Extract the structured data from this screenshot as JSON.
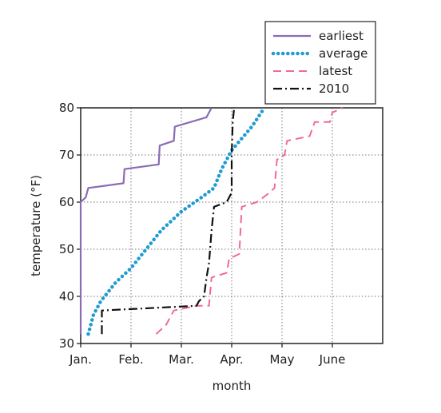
{
  "chart_data": {
    "type": "line",
    "title": "",
    "xlabel": "month",
    "ylabel": "temperature (°F)",
    "x_unit": "months after Jan. 1",
    "xlim": [
      0,
      6
    ],
    "ylim": [
      30,
      80
    ],
    "x_ticks": [
      {
        "value": 0,
        "label": "Jan."
      },
      {
        "value": 1,
        "label": "Feb."
      },
      {
        "value": 2,
        "label": "Mar."
      },
      {
        "value": 3,
        "label": "Apr."
      },
      {
        "value": 4,
        "label": "May"
      },
      {
        "value": 5,
        "label": "June"
      }
    ],
    "y_ticks": [
      30,
      40,
      50,
      60,
      70,
      80
    ],
    "grid": true,
    "legend_position": "top-right",
    "series": [
      {
        "name": "earliest",
        "color": "#8b6bb5",
        "style": "solid",
        "points": [
          [
            0.0,
            32
          ],
          [
            0.0,
            60
          ],
          [
            0.1,
            61
          ],
          [
            0.15,
            63
          ],
          [
            0.85,
            64
          ],
          [
            0.87,
            67
          ],
          [
            1.55,
            68
          ],
          [
            1.57,
            72
          ],
          [
            1.85,
            73
          ],
          [
            1.87,
            76
          ],
          [
            2.5,
            78
          ],
          [
            2.55,
            79
          ],
          [
            2.6,
            80
          ]
        ]
      },
      {
        "name": "average",
        "color": "#1f9bd1",
        "style": "dotted",
        "points": [
          [
            0.15,
            32
          ],
          [
            0.25,
            36
          ],
          [
            0.4,
            39
          ],
          [
            0.7,
            43
          ],
          [
            1.0,
            46
          ],
          [
            1.3,
            50
          ],
          [
            1.6,
            54
          ],
          [
            2.0,
            58
          ],
          [
            2.4,
            61
          ],
          [
            2.65,
            63
          ],
          [
            2.8,
            67
          ],
          [
            3.0,
            71
          ],
          [
            3.4,
            76
          ],
          [
            3.65,
            80
          ]
        ]
      },
      {
        "name": "latest",
        "color": "#f06b93",
        "style": "dashed",
        "points": [
          [
            1.5,
            32
          ],
          [
            1.7,
            34
          ],
          [
            1.85,
            37
          ],
          [
            2.3,
            38
          ],
          [
            2.55,
            38
          ],
          [
            2.6,
            44
          ],
          [
            2.9,
            45
          ],
          [
            2.95,
            48
          ],
          [
            3.15,
            49
          ],
          [
            3.2,
            59
          ],
          [
            3.5,
            60
          ],
          [
            3.75,
            62
          ],
          [
            3.85,
            63
          ],
          [
            3.9,
            69
          ],
          [
            4.05,
            70
          ],
          [
            4.1,
            73
          ],
          [
            4.55,
            74
          ],
          [
            4.65,
            77
          ],
          [
            4.95,
            77
          ],
          [
            5.0,
            79
          ],
          [
            5.2,
            80
          ]
        ]
      },
      {
        "name": "2010",
        "color": "#111111",
        "style": "dashdot",
        "points": [
          [
            0.42,
            32
          ],
          [
            0.42,
            37
          ],
          [
            2.3,
            38
          ],
          [
            2.35,
            39
          ],
          [
            2.45,
            40
          ],
          [
            2.5,
            44
          ],
          [
            2.55,
            47
          ],
          [
            2.6,
            54
          ],
          [
            2.65,
            59
          ],
          [
            2.9,
            60
          ],
          [
            3.0,
            62
          ],
          [
            3.0,
            70
          ],
          [
            3.02,
            77
          ],
          [
            3.05,
            80
          ]
        ]
      }
    ]
  }
}
